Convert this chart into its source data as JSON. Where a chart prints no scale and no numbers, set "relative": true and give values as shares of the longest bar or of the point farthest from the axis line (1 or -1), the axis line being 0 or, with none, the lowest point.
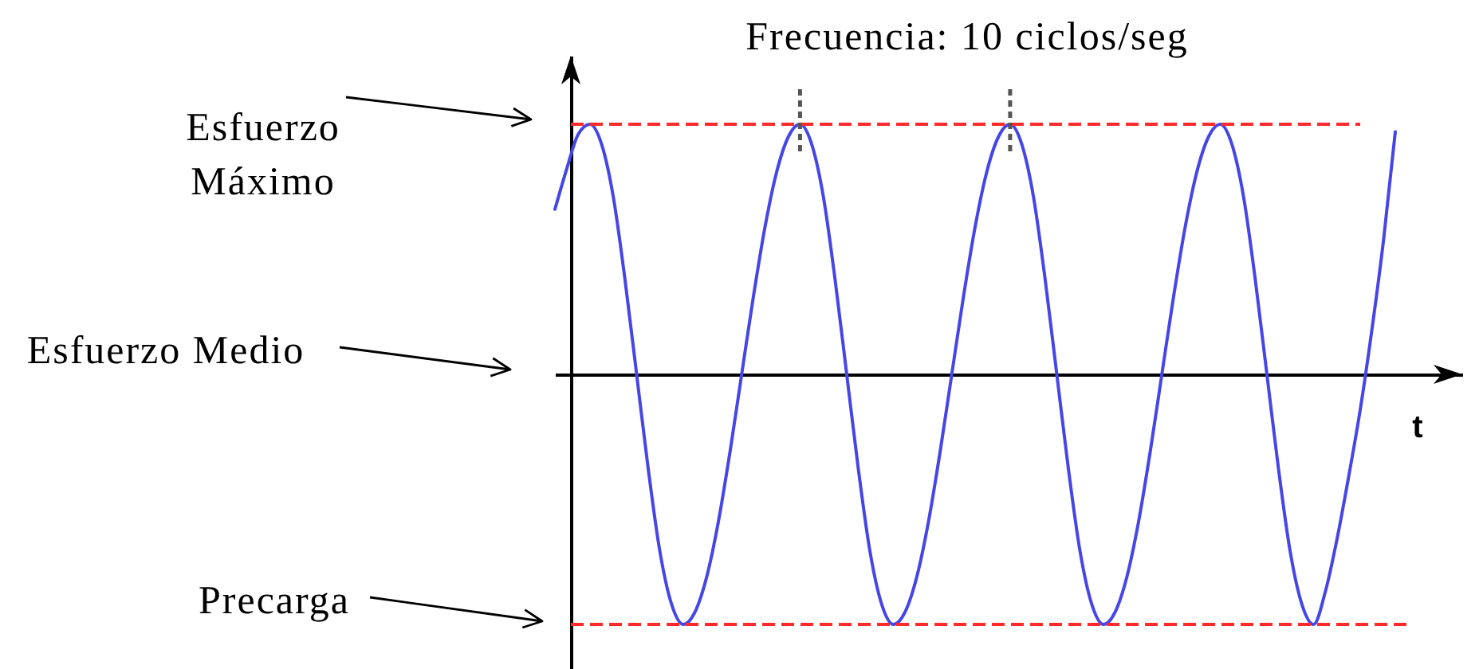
{
  "chart_data": {
    "type": "line",
    "title": "Frecuencia: 10 ciclos/seg",
    "xlabel": "t",
    "relative": true,
    "categories": [
      null,
      null,
      null,
      null,
      null,
      null,
      null,
      null,
      null,
      null,
      null,
      null,
      null,
      null,
      null,
      null,
      null,
      null,
      null,
      null,
      null,
      null,
      null,
      null,
      null,
      null,
      null,
      null,
      null,
      null,
      null,
      null,
      null,
      null,
      null,
      null,
      null,
      null,
      null,
      null,
      null,
      null,
      null,
      null,
      null,
      null,
      null,
      null,
      null,
      null,
      null,
      null,
      null,
      null,
      null,
      null,
      null,
      null,
      null,
      null,
      null,
      null,
      null,
      null,
      null,
      null,
      null,
      null,
      null,
      null,
      null,
      null,
      null
    ],
    "series": [
      {
        "color": "#4646e6",
        "values": [
          0.66,
          0.82,
          0.96,
          1,
          0.92,
          0.71,
          0.38,
          0,
          -0.38,
          -0.71,
          -0.92,
          -1,
          -0.95,
          -0.81,
          -0.59,
          -0.31,
          0,
          0.31,
          0.59,
          0.81,
          0.95,
          1,
          0.92,
          0.71,
          0.38,
          0,
          -0.38,
          -0.71,
          -0.92,
          -1,
          -0.95,
          -0.81,
          -0.59,
          -0.31,
          0,
          0.31,
          0.59,
          0.81,
          0.95,
          1,
          0.92,
          0.71,
          0.38,
          0,
          -0.38,
          -0.71,
          -0.92,
          -1,
          -0.95,
          -0.81,
          -0.59,
          -0.31,
          0,
          0.31,
          0.59,
          0.81,
          0.95,
          1,
          0.92,
          0.71,
          0.38,
          0,
          -0.38,
          -0.71,
          -0.92,
          -1,
          -0.87,
          -0.66,
          -0.41,
          -0.14,
          0.18,
          0.54,
          0.97
        ]
      }
    ],
    "ref_lines": [
      {
        "axis": "y",
        "value": 1,
        "color": "#ff2a2a",
        "line_style": "dashed"
      },
      {
        "axis": "y",
        "value": -1,
        "color": "#ff2a2a",
        "line_style": "dashed"
      }
    ],
    "annotations": [
      "Esfuerzo\nMáximo",
      "Esfuerzo Medio",
      "Precarga"
    ]
  }
}
